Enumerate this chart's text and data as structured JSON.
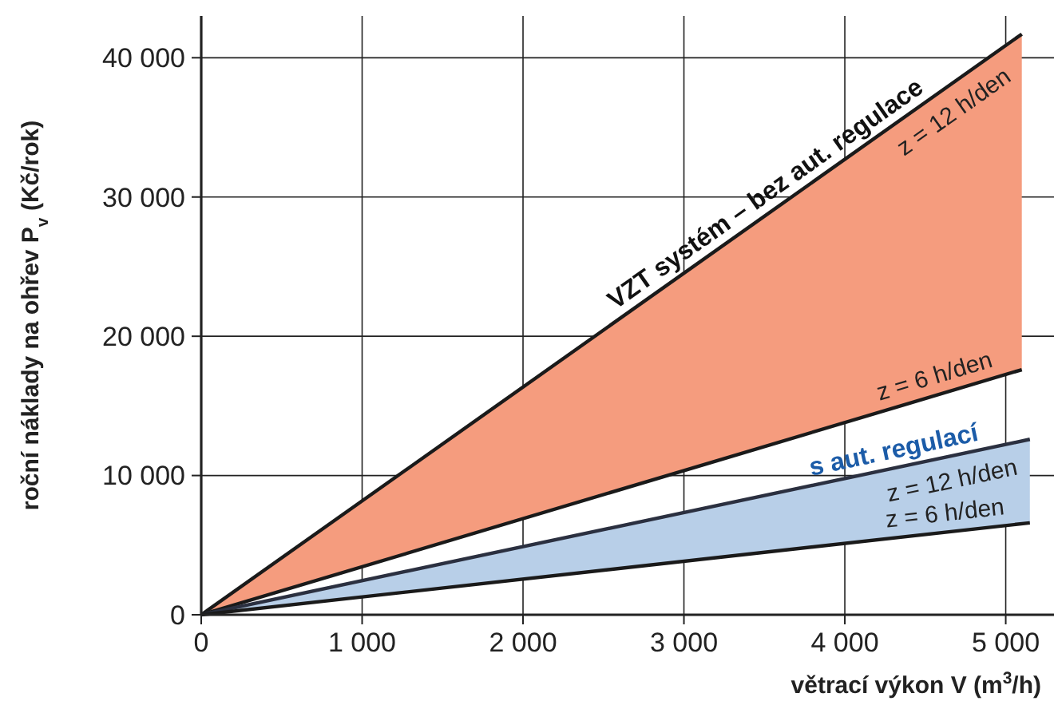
{
  "chart_data": {
    "type": "line",
    "xlabel": "větrací výkon V (m$^{3}$/h)",
    "ylabel": "roční náklady na ohřev P$_{v}$ (Kč/rok)",
    "xlim": [
      0,
      5300
    ],
    "ylim": [
      0,
      43000
    ],
    "xticks": [
      0,
      {
        "value": 1000,
        "label": "1 000"
      },
      {
        "value": 2000,
        "label": "2 000"
      },
      {
        "value": 3000,
        "label": "3 000"
      },
      {
        "value": 4000,
        "label": "4 000"
      },
      {
        "value": 5000,
        "label": "5 000"
      }
    ],
    "yticks": [
      0,
      {
        "value": 10000,
        "label": "10 000"
      },
      {
        "value": 20000,
        "label": "20 000"
      },
      {
        "value": 30000,
        "label": "30 000"
      },
      {
        "value": 40000,
        "label": "40 000"
      }
    ],
    "grid": true,
    "marker": "none",
    "line_style": "solid",
    "series": [
      {
        "name": "z = 12 h/den",
        "color": "#1a1a1a",
        "colors": [
          "#f59c7e",
          "#f59c7e"
        ],
        "x": [
          0,
          5100
        ],
        "values": [
          0,
          41700
        ],
        "lower": [
          0,
          17600
        ],
        "upper": [
          0,
          41700
        ]
      },
      {
        "name": "z = 6 h/den",
        "color": "#1a1a1a",
        "x": [
          0,
          5100
        ],
        "values": [
          0,
          17600
        ]
      },
      {
        "name": "z = 12 h/den",
        "color": "#2b3040",
        "colors": [
          "#b8cfe8",
          "#b8cfe8"
        ],
        "x": [
          0,
          5150
        ],
        "values": [
          0,
          12600
        ],
        "lower": [
          0,
          6600
        ],
        "upper": [
          0,
          12600
        ]
      },
      {
        "name": "z = 6 h/den",
        "color": "#1a1a1a",
        "x": [
          0,
          5150
        ],
        "values": [
          0,
          6600
        ]
      }
    ],
    "annotations": [
      "VZT systém – bez aut. regulace",
      "s aut. regulací"
    ]
  }
}
